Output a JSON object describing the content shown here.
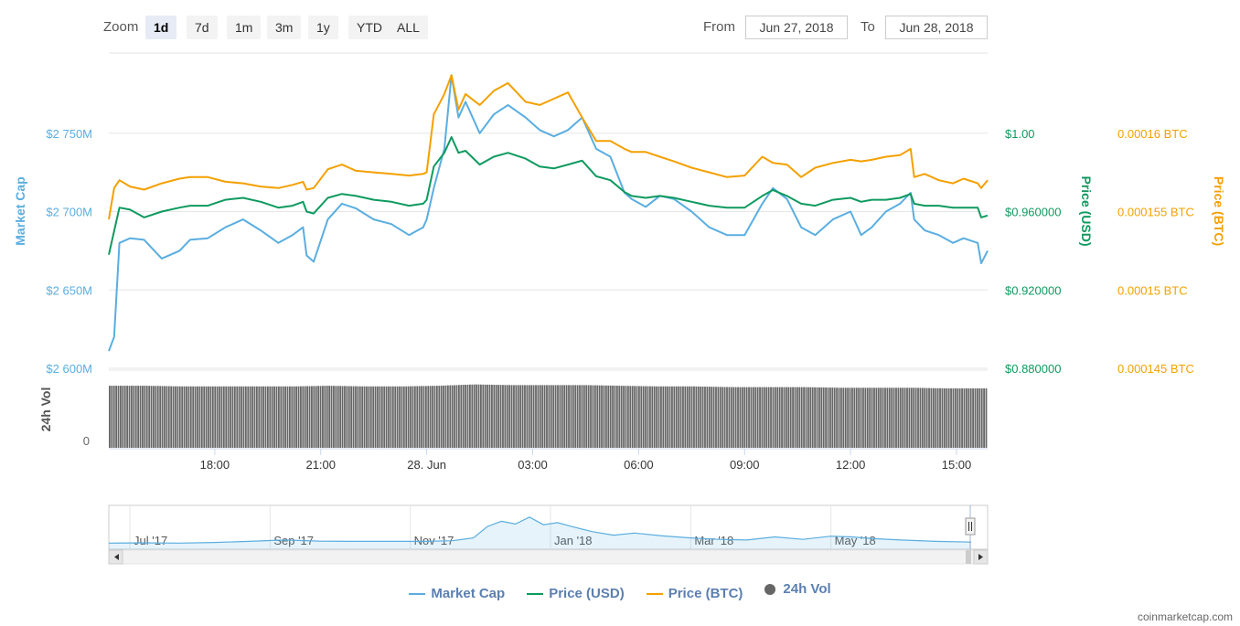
{
  "zoom": {
    "label": "Zoom",
    "buttons": [
      "1d",
      "7d",
      "1m",
      "3m",
      "1y",
      "YTD",
      "ALL"
    ],
    "active": "1d"
  },
  "range": {
    "from_label": "From",
    "from_value": "Jun 27, 2018",
    "to_label": "To",
    "to_value": "Jun 28, 2018"
  },
  "credit": "coinmarketcap.com",
  "legend": [
    {
      "name": "Market Cap",
      "color": "#5aaee0",
      "kind": "line"
    },
    {
      "name": "Price (USD)",
      "color": "#0e9a5f",
      "kind": "line"
    },
    {
      "name": "Price (BTC)",
      "color": "#f4a000",
      "kind": "line"
    },
    {
      "name": "24h Vol",
      "color": "#666666",
      "kind": "dot"
    }
  ],
  "chart_data": {
    "type": "line",
    "x_ticks": [
      "18:00",
      "21:00",
      "28. Jun",
      "03:00",
      "06:00",
      "09:00",
      "12:00",
      "15:00"
    ],
    "x_tick_hours": [
      18,
      21,
      24,
      27,
      30,
      33,
      36,
      39
    ],
    "x_range_hours": [
      15.0,
      39.88
    ],
    "axes": {
      "market_cap": {
        "title": "Market Cap",
        "color": "#5aaee0",
        "ticks": [
          "$2 600M",
          "$2 650M",
          "$2 700M",
          "$2 750M"
        ],
        "tick_values": [
          2600,
          2650,
          2700,
          2750
        ],
        "range": [
          2600,
          2800
        ]
      },
      "price_usd": {
        "title": "Price (USD)",
        "color": "#0e9a5f",
        "ticks": [
          "$0.880000",
          "$0.920000",
          "$0.960000",
          "$1.00"
        ],
        "tick_values": [
          0.88,
          0.92,
          0.96,
          1.0
        ],
        "range": [
          0.88,
          1.04
        ]
      },
      "price_btc": {
        "title": "Price (BTC)",
        "color": "#f4a000",
        "ticks": [
          "0.000145 BTC",
          "0.00015 BTC",
          "0.000155 BTC",
          "0.00016 BTC"
        ],
        "tick_values": [
          0.000145,
          0.00015,
          0.000155,
          0.00016
        ],
        "range": [
          0.000145,
          0.000165
        ]
      },
      "volume": {
        "title": "24h Vol",
        "color": "#666666",
        "ticks": [
          "0"
        ]
      }
    },
    "series": [
      {
        "name": "Market Cap",
        "axis": "market_cap",
        "color": "#5aaee0",
        "x": [
          15.0,
          15.15,
          15.3,
          15.6,
          16.0,
          16.5,
          17.0,
          17.3,
          17.8,
          18.3,
          18.8,
          19.3,
          19.8,
          20.2,
          20.5,
          20.6,
          20.8,
          21.2,
          21.6,
          22.0,
          22.5,
          23.0,
          23.5,
          23.9,
          24.0,
          24.2,
          24.5,
          24.7,
          24.9,
          25.1,
          25.5,
          25.9,
          26.3,
          26.8,
          27.2,
          27.6,
          28.0,
          28.4,
          28.8,
          29.2,
          29.6,
          29.8,
          30.2,
          30.6,
          31.0,
          31.5,
          32.0,
          32.5,
          33.0,
          33.5,
          33.8,
          34.2,
          34.6,
          35.0,
          35.5,
          36.0,
          36.3,
          36.6,
          37.0,
          37.4,
          37.7,
          37.8,
          38.1,
          38.5,
          38.9,
          39.2,
          39.6,
          39.7,
          39.88
        ],
        "y": [
          2611,
          2620,
          2680,
          2683,
          2682,
          2670,
          2675,
          2682,
          2683,
          2690,
          2695,
          2688,
          2680,
          2685,
          2690,
          2672,
          2668,
          2695,
          2705,
          2702,
          2695,
          2692,
          2685,
          2690,
          2695,
          2715,
          2740,
          2787,
          2760,
          2770,
          2750,
          2762,
          2768,
          2760,
          2752,
          2748,
          2752,
          2760,
          2740,
          2735,
          2712,
          2708,
          2703,
          2710,
          2708,
          2700,
          2690,
          2685,
          2685,
          2705,
          2715,
          2708,
          2690,
          2685,
          2695,
          2700,
          2685,
          2690,
          2700,
          2705,
          2712,
          2695,
          2688,
          2685,
          2680,
          2683,
          2680,
          2667,
          2675
        ]
      },
      {
        "name": "Price (USD)",
        "axis": "price_usd",
        "color": "#0e9a5f",
        "x": [
          15.0,
          15.15,
          15.3,
          15.6,
          16.0,
          16.5,
          17.0,
          17.3,
          17.8,
          18.3,
          18.8,
          19.3,
          19.8,
          20.2,
          20.5,
          20.6,
          20.8,
          21.2,
          21.6,
          22.0,
          22.5,
          23.0,
          23.5,
          23.9,
          24.0,
          24.2,
          24.5,
          24.7,
          24.9,
          25.1,
          25.5,
          25.9,
          26.3,
          26.8,
          27.2,
          27.6,
          28.0,
          28.4,
          28.8,
          29.2,
          29.6,
          29.8,
          30.2,
          30.6,
          31.0,
          31.5,
          32.0,
          32.5,
          33.0,
          33.5,
          33.8,
          34.2,
          34.6,
          35.0,
          35.5,
          36.0,
          36.3,
          36.6,
          37.0,
          37.4,
          37.7,
          37.8,
          38.1,
          38.5,
          38.9,
          39.2,
          39.6,
          39.7,
          39.88
        ],
        "y": [
          0.938,
          0.95,
          0.962,
          0.961,
          0.957,
          0.96,
          0.962,
          0.963,
          0.963,
          0.966,
          0.967,
          0.965,
          0.962,
          0.963,
          0.965,
          0.96,
          0.959,
          0.967,
          0.969,
          0.968,
          0.966,
          0.965,
          0.963,
          0.964,
          0.966,
          0.983,
          0.99,
          0.998,
          0.99,
          0.991,
          0.984,
          0.988,
          0.99,
          0.987,
          0.983,
          0.982,
          0.984,
          0.986,
          0.978,
          0.976,
          0.97,
          0.968,
          0.967,
          0.968,
          0.967,
          0.965,
          0.963,
          0.962,
          0.962,
          0.968,
          0.971,
          0.968,
          0.964,
          0.963,
          0.966,
          0.967,
          0.965,
          0.966,
          0.966,
          0.967,
          0.969,
          0.964,
          0.963,
          0.963,
          0.962,
          0.962,
          0.962,
          0.957,
          0.958
        ]
      },
      {
        "name": "Price (BTC)",
        "axis": "price_btc",
        "color": "#f4a000",
        "x": [
          15.0,
          15.15,
          15.3,
          15.6,
          16.0,
          16.5,
          17.0,
          17.3,
          17.8,
          18.3,
          18.8,
          19.3,
          19.8,
          20.2,
          20.5,
          20.6,
          20.8,
          21.2,
          21.6,
          22.0,
          22.5,
          23.0,
          23.5,
          23.9,
          24.0,
          24.2,
          24.5,
          24.7,
          24.9,
          25.1,
          25.5,
          25.9,
          26.3,
          26.8,
          27.2,
          27.6,
          28.0,
          28.4,
          28.8,
          29.2,
          29.6,
          29.8,
          30.2,
          30.6,
          31.0,
          31.5,
          32.0,
          32.5,
          33.0,
          33.5,
          33.8,
          34.2,
          34.6,
          35.0,
          35.5,
          36.0,
          36.3,
          36.6,
          37.0,
          37.4,
          37.7,
          37.8,
          38.1,
          38.5,
          38.9,
          39.2,
          39.6,
          39.7,
          39.88
        ],
        "y": [
          0.0001545,
          0.0001565,
          0.000157,
          0.0001566,
          0.0001564,
          0.0001568,
          0.0001571,
          0.0001572,
          0.0001572,
          0.0001569,
          0.0001568,
          0.0001566,
          0.0001565,
          0.0001567,
          0.0001569,
          0.0001564,
          0.0001565,
          0.0001577,
          0.000158,
          0.0001576,
          0.0001575,
          0.0001574,
          0.0001573,
          0.0001574,
          0.0001575,
          0.0001612,
          0.0001625,
          0.0001637,
          0.0001615,
          0.0001625,
          0.0001618,
          0.0001627,
          0.0001632,
          0.000162,
          0.0001618,
          0.0001622,
          0.0001626,
          0.000161,
          0.0001595,
          0.0001595,
          0.000159,
          0.0001588,
          0.0001588,
          0.0001585,
          0.0001582,
          0.0001578,
          0.0001575,
          0.0001572,
          0.0001573,
          0.0001585,
          0.0001581,
          0.000158,
          0.0001572,
          0.0001578,
          0.0001581,
          0.0001583,
          0.0001582,
          0.0001583,
          0.0001585,
          0.0001586,
          0.000159,
          0.0001572,
          0.0001574,
          0.000157,
          0.0001568,
          0.0001571,
          0.0001568,
          0.0001565,
          0.000157
        ]
      }
    ],
    "volume": {
      "start_hour": 15.0,
      "end_hour": 39.88,
      "levels": [
        0.93,
        0.93,
        0.92,
        0.92,
        0.92,
        0.92,
        0.93,
        0.92,
        0.92,
        0.93,
        0.95,
        0.94,
        0.94,
        0.94,
        0.93,
        0.92,
        0.92,
        0.91,
        0.91,
        0.91,
        0.9,
        0.9,
        0.9,
        0.89,
        0.89
      ]
    },
    "navigator": {
      "ticks": [
        "Jul '17",
        "Sep '17",
        "Nov '17",
        "Jan '18",
        "Mar '18",
        "May '18"
      ],
      "tick_months": [
        0,
        2,
        4,
        6,
        8,
        10
      ],
      "range_months": [
        -0.3,
        12.0
      ],
      "x_months": [
        -0.3,
        0.2,
        0.7,
        1.2,
        1.7,
        2.2,
        2.7,
        3.2,
        3.7,
        4.2,
        4.6,
        4.9,
        5.1,
        5.3,
        5.5,
        5.7,
        5.9,
        6.1,
        6.3,
        6.6,
        6.9,
        7.2,
        7.6,
        8.0,
        8.4,
        8.8,
        9.2,
        9.6,
        10.0,
        10.3,
        10.6,
        11.0,
        11.5,
        12.0
      ],
      "values": [
        0.07,
        0.08,
        0.07,
        0.09,
        0.12,
        0.16,
        0.13,
        0.12,
        0.12,
        0.12,
        0.14,
        0.22,
        0.55,
        0.7,
        0.62,
        0.82,
        0.6,
        0.66,
        0.55,
        0.4,
        0.3,
        0.36,
        0.28,
        0.22,
        0.18,
        0.16,
        0.25,
        0.18,
        0.27,
        0.25,
        0.2,
        0.16,
        0.12,
        0.1
      ]
    }
  }
}
